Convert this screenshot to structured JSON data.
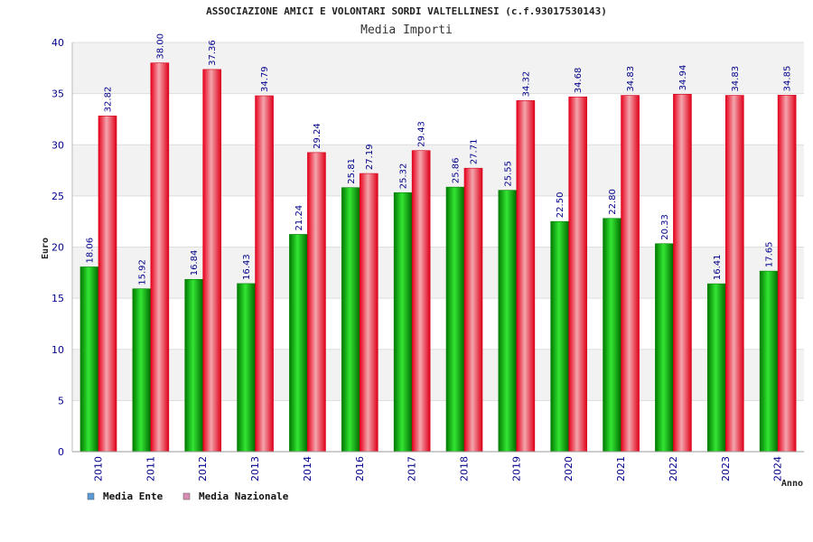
{
  "chart_data": {
    "type": "bar",
    "title": "ASSOCIAZIONE AMICI E VOLONTARI SORDI VALTELLINESI (c.f.93017530143)",
    "subtitle": "Media Importi",
    "xlabel": "Anno",
    "ylabel": "Euro",
    "ylim": [
      0,
      40
    ],
    "yticks": [
      0,
      5,
      10,
      15,
      20,
      25,
      30,
      35,
      40
    ],
    "categories": [
      "2010",
      "2011",
      "2012",
      "2013",
      "2014",
      "2016",
      "2017",
      "2018",
      "2019",
      "2020",
      "2021",
      "2022",
      "2023",
      "2024"
    ],
    "series": [
      {
        "name": "Media Ente",
        "color": "#00b000",
        "legend_color": "#5b9bd5",
        "values": [
          18.06,
          15.92,
          16.84,
          16.43,
          21.24,
          25.81,
          25.32,
          25.86,
          25.55,
          22.5,
          22.8,
          20.33,
          16.41,
          17.65
        ],
        "labels": [
          "18.06",
          "15.92",
          "16.84",
          "16.43",
          "21.24",
          "25.81",
          "25.32",
          "25.86",
          "25.55",
          "22.50",
          "22.80",
          "20.33",
          "16.41",
          "17.65"
        ]
      },
      {
        "name": "Media Nazionale",
        "color": "#e8001c",
        "legend_color": "#d98cb3",
        "values": [
          32.82,
          38.0,
          37.36,
          34.79,
          29.24,
          27.19,
          29.43,
          27.71,
          34.32,
          34.68,
          34.83,
          34.94,
          34.83,
          34.85
        ],
        "labels": [
          "32.82",
          "38.00",
          "37.36",
          "34.79",
          "29.24",
          "27.19",
          "29.43",
          "27.71",
          "34.32",
          "34.68",
          "34.83",
          "34.94",
          "34.83",
          "34.85"
        ]
      }
    ],
    "grid": true,
    "legend_position": "bottom-left"
  }
}
